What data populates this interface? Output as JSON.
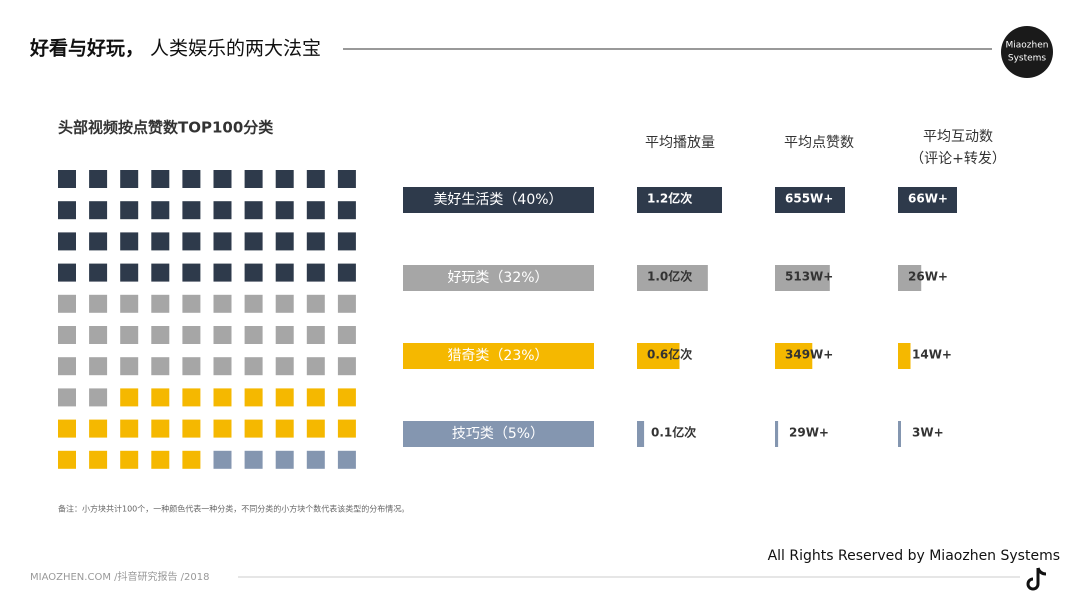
{
  "header": {
    "title_bold": "好看与好玩，",
    "title": "人类娱乐的两大法宝",
    "logo": [
      "Miaozhen",
      "Systems"
    ]
  },
  "chart_data": {
    "type": "waffle",
    "title": "头部视频按点赞数TOP100分类",
    "categories": [
      "美好生活类（40%）",
      "好玩类（32%）",
      "猎奇类（23%）",
      "技巧类（5%）"
    ],
    "values": [
      40,
      32,
      23,
      5
    ],
    "colors": [
      "#2e3a4b",
      "#a6a6a6",
      "#f5b800",
      "#8496b0"
    ],
    "metrics": [
      {
        "name": "平均播放量",
        "values": [
          1.2,
          1.0,
          0.6,
          0.1
        ],
        "value_labels": [
          "1.2亿次",
          "1.0亿次",
          "0.6亿次",
          "0.1亿次"
        ]
      },
      {
        "name": "平均点赞数",
        "values": [
          655,
          513,
          349,
          29
        ],
        "value_labels": [
          "655W+",
          "513W+",
          "349W+",
          "29W+"
        ]
      },
      {
        "name": "平均互动数",
        "note": "（评论+转发）",
        "values": [
          66,
          26,
          14,
          3
        ],
        "value_labels": [
          "66W+",
          "26W+",
          "14W+",
          "3W+"
        ]
      }
    ],
    "footnote": "备注：小方块共计100个，一种颜色代表一种分类，不同分类的小方块个数代表该类型的分布情况。"
  },
  "footer": {
    "left": "MIAOZHEN.COM /抖音研究报告 /2018",
    "right": "All Rights Reserved by Miaozhen Systems"
  }
}
